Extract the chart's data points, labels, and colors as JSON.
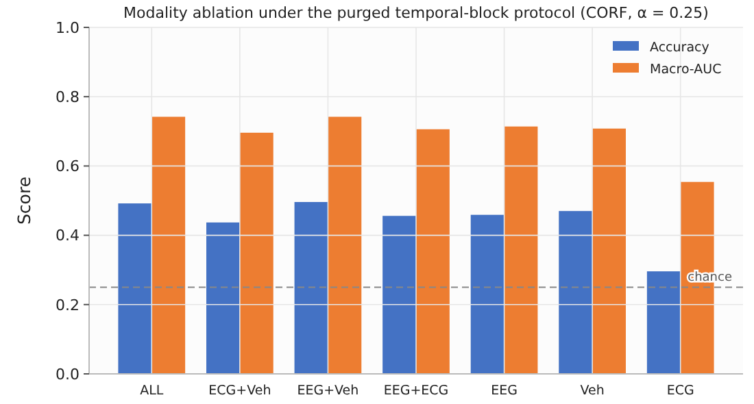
{
  "chart_data": {
    "type": "bar",
    "title": "Modality ablation under the purged temporal-block protocol (CORF, α = 0.25)",
    "ylabel": "Score",
    "categories": [
      "ALL",
      "ECG+Veh",
      "EEG+Veh",
      "EEG+ECG",
      "EEG",
      "Veh",
      "ECG"
    ],
    "series": [
      {
        "name": "Accuracy",
        "color": "#4472c4",
        "values": [
          0.492,
          0.437,
          0.496,
          0.456,
          0.459,
          0.47,
          0.296
        ]
      },
      {
        "name": "Macro-AUC",
        "color": "#ed7d31",
        "values": [
          0.742,
          0.696,
          0.742,
          0.706,
          0.714,
          0.708,
          0.554
        ]
      }
    ],
    "ylim": [
      0,
      1
    ],
    "yticks": [
      {
        "value": 0,
        "label": "0.0"
      },
      {
        "value": 0.2,
        "label": "0.2"
      },
      {
        "value": 0.4,
        "label": "0.4"
      },
      {
        "value": 0.6,
        "label": "0.6"
      },
      {
        "value": 0.8,
        "label": "0.8"
      },
      {
        "value": 1,
        "label": "1.0"
      }
    ],
    "grid": true,
    "legend": "top right",
    "ref_lines": [
      {
        "axis": "y",
        "value": 0.25,
        "label": "chance",
        "color": "#888888",
        "line_style": "dashed"
      }
    ]
  }
}
